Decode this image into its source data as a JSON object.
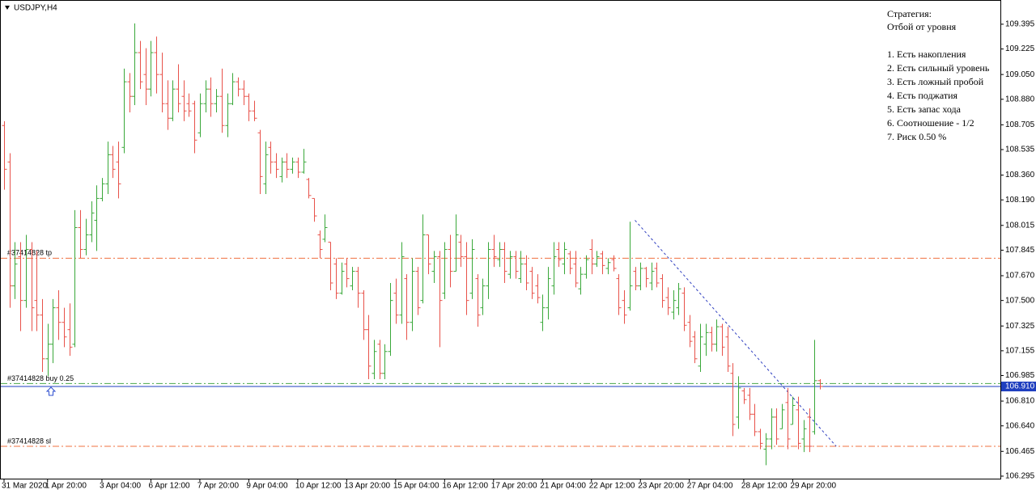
{
  "chart_data": {
    "type": "ohlc",
    "title": "USDJPY,H4",
    "up_color": "#3aa83a",
    "down_color": "#e8524a",
    "ylim": [
      106.278,
      109.561
    ],
    "yticks": [
      109.395,
      109.225,
      {
        "value": 109.05,
        "label": "109.050"
      },
      {
        "value": 108.88,
        "label": "108.880"
      },
      108.705,
      108.535,
      {
        "value": 108.36,
        "label": "108.360"
      },
      {
        "value": 108.19,
        "label": "108.190"
      },
      108.015,
      107.845,
      {
        "value": 107.67,
        "label": "107.670"
      },
      {
        "value": 107.5,
        "label": "107.500"
      },
      107.325,
      107.155,
      106.985,
      {
        "value": 106.81,
        "label": "106.810"
      },
      {
        "value": 106.64,
        "label": "106.640"
      },
      106.465,
      106.295
    ],
    "categories": [
      "31 Mar 2020",
      null,
      null,
      null,
      null,
      null,
      null,
      null,
      "1 Apr 20:00",
      null,
      null,
      null,
      null,
      null,
      null,
      null,
      null,
      null,
      "3 Apr 04:00",
      null,
      null,
      null,
      null,
      null,
      null,
      null,
      null,
      "6 Apr 12:00",
      null,
      null,
      null,
      null,
      null,
      null,
      null,
      null,
      "7 Apr 20:00",
      null,
      null,
      null,
      null,
      null,
      null,
      null,
      null,
      "9 Apr 04:00",
      null,
      null,
      null,
      null,
      null,
      null,
      null,
      null,
      "10 Apr 12:00",
      null,
      null,
      null,
      null,
      null,
      null,
      null,
      null,
      "13 Apr 20:00",
      null,
      null,
      null,
      null,
      null,
      null,
      null,
      null,
      "15 Apr 04:00",
      null,
      null,
      null,
      null,
      null,
      null,
      null,
      null,
      "16 Apr 12:00",
      null,
      null,
      null,
      null,
      null,
      null,
      null,
      null,
      "17 Apr 20:00",
      null,
      null,
      null,
      null,
      null,
      null,
      null,
      null,
      "21 Apr 04:00",
      null,
      null,
      null,
      null,
      null,
      null,
      null,
      null,
      "22 Apr 12:00",
      null,
      null,
      null,
      null,
      null,
      null,
      null,
      null,
      "23 Apr 20:00",
      null,
      null,
      null,
      null,
      null,
      null,
      null,
      null,
      "27 Apr 04:00",
      null,
      null,
      null,
      null,
      null,
      null,
      null,
      null,
      null,
      "28 Apr 12:00",
      null,
      null,
      null,
      null,
      null,
      null,
      null,
      null,
      "29 Apr 20:00",
      null,
      null,
      null,
      null,
      null
    ],
    "ohlc": [
      [
        108.7,
        108.73,
        108.26,
        108.4
      ],
      [
        108.45,
        108.51,
        107.45,
        107.6
      ],
      [
        107.6,
        107.9,
        107.51,
        107.75
      ],
      [
        107.8,
        107.9,
        107.29,
        107.5
      ],
      [
        107.5,
        107.95,
        107.45,
        107.85
      ],
      [
        107.85,
        107.9,
        107.29,
        107.45
      ],
      [
        107.5,
        107.84,
        107.29,
        107.4
      ],
      [
        107.4,
        107.51,
        107.01,
        107.1
      ],
      [
        107.1,
        107.34,
        106.98,
        107.2
      ],
      [
        107.2,
        107.51,
        107.07,
        107.45
      ],
      [
        107.45,
        107.57,
        107.23,
        107.35
      ],
      [
        107.35,
        107.45,
        107.18,
        107.25
      ],
      [
        107.3,
        107.48,
        107.12,
        107.18
      ],
      [
        107.2,
        108.12,
        107.18,
        108.0
      ],
      [
        108.0,
        108.12,
        107.79,
        107.85
      ],
      [
        107.85,
        108.06,
        107.81,
        107.95
      ],
      [
        107.95,
        108.18,
        107.9,
        108.1
      ],
      [
        108.05,
        108.29,
        107.84,
        108.2
      ],
      [
        108.2,
        108.34,
        108.18,
        108.3
      ],
      [
        108.3,
        108.59,
        108.23,
        108.5
      ],
      [
        108.5,
        108.56,
        108.34,
        108.4
      ],
      [
        108.45,
        108.59,
        108.2,
        108.3
      ],
      [
        108.55,
        109.09,
        108.51,
        109.0
      ],
      [
        109.0,
        109.06,
        108.79,
        108.9
      ],
      [
        108.9,
        109.4,
        108.84,
        109.2
      ],
      [
        109.2,
        109.28,
        108.95,
        109.0
      ],
      [
        109.05,
        109.23,
        108.84,
        108.95
      ],
      [
        108.95,
        109.28,
        108.9,
        109.2
      ],
      [
        109.2,
        109.31,
        108.92,
        109.05
      ],
      [
        109.05,
        109.2,
        108.79,
        108.85
      ],
      [
        108.85,
        109.01,
        108.67,
        108.75
      ],
      [
        108.75,
        109.01,
        108.73,
        108.95
      ],
      [
        108.95,
        109.12,
        108.79,
        108.85
      ],
      [
        108.9,
        109.01,
        108.73,
        108.8
      ],
      [
        108.85,
        108.92,
        108.76,
        108.8
      ],
      [
        108.85,
        108.87,
        108.51,
        108.6
      ],
      [
        108.65,
        108.92,
        108.62,
        108.85
      ],
      [
        108.85,
        109.01,
        108.79,
        108.95
      ],
      [
        108.95,
        109.03,
        108.76,
        108.85
      ],
      [
        108.85,
        108.95,
        108.79,
        108.9
      ],
      [
        108.9,
        109.09,
        108.65,
        108.7
      ],
      [
        108.7,
        108.92,
        108.62,
        108.85
      ],
      [
        108.85,
        109.06,
        108.84,
        109.0
      ],
      [
        109.0,
        109.03,
        108.9,
        108.95
      ],
      [
        108.95,
        109.01,
        108.84,
        108.9
      ],
      [
        108.9,
        108.92,
        108.73,
        108.8
      ],
      [
        108.8,
        108.87,
        108.73,
        108.75
      ],
      [
        108.65,
        108.67,
        108.23,
        108.35
      ],
      [
        108.3,
        108.59,
        108.23,
        108.5
      ],
      [
        108.55,
        108.59,
        108.37,
        108.45
      ],
      [
        108.45,
        108.51,
        108.34,
        108.4
      ],
      [
        108.35,
        108.48,
        108.31,
        108.45
      ],
      [
        108.45,
        108.51,
        108.34,
        108.4
      ],
      [
        108.4,
        108.48,
        108.37,
        108.45
      ],
      [
        108.45,
        108.48,
        108.34,
        108.38
      ],
      [
        108.38,
        108.54,
        108.37,
        108.45
      ],
      [
        108.33,
        108.34,
        108.2,
        108.22
      ],
      [
        108.2,
        108.2,
        108.04,
        108.08
      ],
      [
        107.95,
        107.98,
        107.79,
        107.85
      ],
      [
        107.92,
        108.09,
        107.9,
        108.0
      ],
      [
        107.9,
        107.9,
        107.57,
        107.62
      ],
      [
        107.75,
        107.79,
        107.51,
        107.55
      ],
      [
        107.55,
        107.76,
        107.54,
        107.7
      ],
      [
        107.75,
        107.79,
        107.59,
        107.65
      ],
      [
        107.6,
        107.73,
        107.57,
        107.7
      ],
      [
        107.7,
        107.73,
        107.45,
        107.55
      ],
      [
        107.55,
        107.57,
        107.23,
        107.3
      ],
      [
        107.3,
        107.4,
        106.96,
        107.05
      ],
      [
        107.0,
        107.23,
        106.96,
        107.15
      ],
      [
        107.2,
        107.23,
        106.96,
        107.0
      ],
      [
        107.0,
        107.2,
        106.96,
        107.15
      ],
      [
        107.15,
        107.62,
        107.12,
        107.5
      ],
      [
        107.55,
        107.65,
        107.34,
        107.4
      ],
      [
        107.4,
        107.9,
        107.34,
        107.8
      ],
      [
        107.65,
        107.68,
        107.23,
        107.35
      ],
      [
        107.35,
        107.79,
        107.29,
        107.7
      ],
      [
        107.7,
        107.73,
        107.4,
        107.45
      ],
      [
        107.5,
        108.09,
        107.48,
        107.95
      ],
      [
        107.95,
        107.95,
        107.68,
        107.75
      ],
      [
        107.7,
        107.84,
        107.62,
        107.8
      ],
      [
        107.8,
        107.84,
        107.18,
        107.5
      ],
      [
        107.55,
        107.9,
        107.51,
        107.85
      ],
      [
        107.85,
        107.95,
        107.59,
        107.7
      ],
      [
        107.7,
        108.09,
        107.7,
        107.95
      ],
      [
        107.9,
        107.95,
        107.73,
        107.8
      ],
      [
        107.8,
        107.9,
        107.4,
        107.5
      ],
      [
        107.55,
        107.92,
        107.51,
        107.85
      ],
      [
        107.65,
        107.68,
        107.32,
        107.4
      ],
      [
        107.45,
        107.65,
        107.4,
        107.6
      ],
      [
        107.6,
        107.9,
        107.51,
        107.85
      ],
      [
        107.85,
        107.95,
        107.73,
        107.8
      ],
      [
        107.78,
        107.9,
        107.73,
        107.85
      ],
      [
        107.85,
        107.9,
        107.62,
        107.7
      ],
      [
        107.68,
        107.84,
        107.65,
        107.8
      ],
      [
        107.8,
        107.84,
        107.65,
        107.7
      ],
      [
        107.65,
        107.84,
        107.62,
        107.75
      ],
      [
        107.75,
        107.81,
        107.57,
        107.62
      ],
      [
        107.7,
        107.73,
        107.51,
        107.55
      ],
      [
        107.6,
        107.68,
        107.48,
        107.52
      ],
      [
        107.35,
        107.54,
        107.29,
        107.45
      ],
      [
        107.45,
        107.73,
        107.37,
        107.65
      ],
      [
        107.6,
        107.9,
        107.54,
        107.8
      ],
      [
        107.85,
        107.9,
        107.73,
        107.78
      ],
      [
        107.75,
        107.9,
        107.68,
        107.85
      ],
      [
        107.82,
        107.84,
        107.68,
        107.72
      ],
      [
        107.75,
        107.84,
        107.59,
        107.62
      ],
      [
        107.58,
        107.73,
        107.54,
        107.68
      ],
      [
        107.68,
        107.81,
        107.65,
        107.78
      ],
      [
        107.85,
        107.92,
        107.68,
        107.75
      ],
      [
        107.75,
        107.84,
        107.73,
        107.8
      ],
      [
        107.82,
        107.84,
        107.68,
        107.74
      ],
      [
        107.72,
        107.79,
        107.68,
        107.76
      ],
      [
        107.78,
        107.81,
        107.7,
        107.72
      ],
      [
        107.65,
        107.68,
        107.4,
        107.45
      ],
      [
        107.5,
        107.57,
        107.34,
        107.4
      ],
      [
        107.45,
        108.04,
        107.43,
        107.6
      ],
      [
        107.7,
        107.73,
        107.57,
        107.6
      ],
      [
        107.6,
        107.76,
        107.57,
        107.72
      ],
      [
        107.72,
        107.73,
        107.59,
        107.65
      ],
      [
        107.62,
        107.76,
        107.57,
        107.7
      ],
      [
        107.72,
        107.76,
        107.59,
        107.62
      ],
      [
        107.65,
        107.68,
        107.45,
        107.5
      ],
      [
        107.52,
        107.59,
        107.4,
        107.45
      ],
      [
        107.42,
        107.57,
        107.37,
        107.5
      ],
      [
        107.45,
        107.62,
        107.4,
        107.58
      ],
      [
        107.55,
        107.59,
        107.29,
        107.33
      ],
      [
        107.35,
        107.4,
        107.18,
        107.22
      ],
      [
        107.25,
        107.29,
        107.07,
        107.1
      ],
      [
        107.05,
        107.34,
        107.01,
        107.25
      ],
      [
        107.2,
        107.34,
        107.12,
        107.28
      ],
      [
        107.28,
        107.32,
        107.15,
        107.2
      ],
      [
        107.2,
        107.37,
        107.15,
        107.32
      ],
      [
        107.32,
        107.34,
        107.12,
        107.18
      ],
      [
        107.25,
        107.32,
        107.01,
        107.05
      ],
      [
        107.0,
        107.07,
        106.57,
        106.65
      ],
      [
        106.7,
        106.98,
        106.62,
        106.9
      ],
      [
        106.88,
        106.9,
        106.79,
        106.82
      ],
      [
        106.85,
        106.9,
        106.68,
        106.72
      ],
      [
        106.72,
        106.79,
        106.57,
        106.6
      ],
      [
        106.6,
        106.62,
        106.48,
        106.52
      ],
      [
        106.48,
        106.59,
        106.37,
        106.55
      ],
      [
        106.55,
        106.76,
        106.48,
        106.7
      ],
      [
        106.7,
        106.76,
        106.51,
        106.55
      ],
      [
        106.62,
        106.79,
        106.62,
        106.75
      ],
      [
        106.8,
        106.9,
        106.48,
        106.55
      ],
      [
        106.65,
        106.84,
        106.65,
        106.78
      ],
      [
        106.75,
        106.84,
        106.48,
        106.52
      ],
      [
        106.55,
        106.68,
        106.46,
        106.62
      ],
      [
        106.7,
        106.76,
        106.46,
        106.5
      ],
      [
        106.6,
        107.23,
        106.58,
        106.95
      ],
      [
        106.95,
        106.96,
        106.89,
        106.91
      ]
    ],
    "order_lines": [
      {
        "name": "#37414828 tp",
        "level": 107.79,
        "color": "#f07040"
      },
      {
        "name": "#37414828 buy 0.25",
        "level": 106.93,
        "color": "#4aa84a"
      },
      {
        "name": "#37414828 sl",
        "level": 106.5,
        "color": "#f07040"
      }
    ],
    "bid": {
      "value": 106.91,
      "label": "106.910"
    },
    "bid_color": "#1f3fbf",
    "trendline": {
      "x": [
        116,
        153
      ],
      "y": [
        108.05,
        106.5
      ],
      "color": "#3040c0"
    },
    "annotations": [
      "Стратегия:",
      "Отбой от уровня",
      "1. Есть накопления",
      "2. Есть сильный уровень",
      "3. Есть ложный пробой",
      "4. Есть поджатия",
      "5. Есть запас хода",
      "6. Соотношение - 1/2",
      "7. Риск 0.50 %"
    ]
  }
}
